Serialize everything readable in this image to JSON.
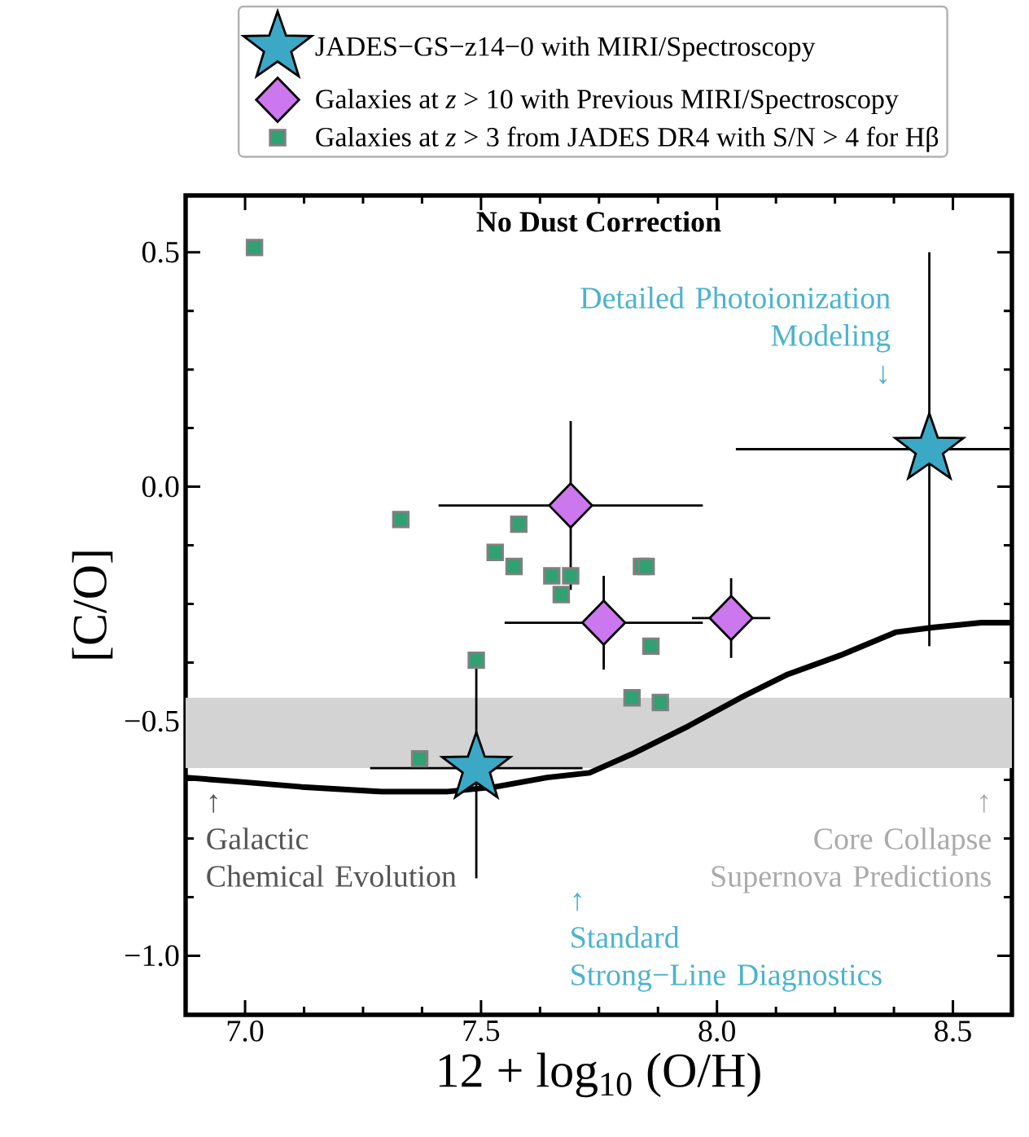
{
  "chart_data": {
    "type": "scatter",
    "title": "No Dust Correction",
    "xlabel": "12 + log$_{10}$ (O/H)",
    "ylabel": "[C/O]",
    "xlim": [
      6.874,
      8.625
    ],
    "ylim": [
      -1.126,
      0.621
    ],
    "xticks": [
      {
        "value": 7.0,
        "label": "7.0"
      },
      {
        "value": 7.5,
        "label": "7.5"
      },
      {
        "value": 8.0,
        "label": "8.0"
      },
      {
        "value": 8.5,
        "label": "8.5"
      }
    ],
    "yticks": [
      {
        "value": 0.5,
        "label": "0.5"
      },
      {
        "value": 0.0,
        "label": "0.0"
      },
      {
        "value": -0.5,
        "label": "−0.5"
      },
      {
        "value": -1.0,
        "label": "−1.0"
      }
    ],
    "legend": "top",
    "series": [
      {
        "name": "JADES−GS−z14−0 with MIRI/Spectroscopy",
        "marker": "star",
        "color": "#3ba9c6",
        "x": [
          7.49,
          8.45
        ],
        "values": [
          -0.6,
          0.08
        ],
        "errors": [
          0.235,
          0.42
        ],
        "xerrors": [
          0.225,
          [
            8.04,
            8.62
          ]
        ]
      },
      {
        "name": "Galaxies at *z* > 10 with Previous MIRI/Spectroscopy",
        "marker": "diamond",
        "color": "#cc77ee",
        "x": [
          7.69,
          7.76,
          8.03
        ],
        "values": [
          -0.04,
          -0.29,
          -0.28
        ],
        "errors": [
          0.18,
          0.1,
          0.085
        ],
        "xerrors": [
          0.28,
          0.21,
          0.083
        ]
      },
      {
        "name": "Galaxies at *z* > 3 from JADES DR4 with S/N > 4 for Hβ",
        "marker": "square",
        "color": "#2fa173",
        "x": [
          7.02,
          7.33,
          7.58,
          7.53,
          7.57,
          7.65,
          7.69,
          7.84,
          7.85,
          7.67,
          7.86,
          7.49,
          7.82,
          7.88,
          7.37
        ],
        "values": [
          0.51,
          -0.07,
          -0.08,
          -0.14,
          -0.17,
          -0.19,
          -0.19,
          -0.17,
          -0.17,
          -0.23,
          -0.34,
          -0.37,
          -0.45,
          -0.46,
          -0.58
        ]
      },
      {
        "type": "line",
        "line_style": "solid",
        "color": "#000000",
        "x": [
          6.874,
          7.0,
          7.12,
          7.29,
          7.43,
          7.53,
          7.64,
          7.73,
          7.82,
          7.94,
          8.05,
          8.15,
          8.26,
          8.38,
          8.46,
          8.56,
          8.623
        ],
        "values": [
          -0.62,
          -0.63,
          -0.64,
          -0.65,
          -0.65,
          -0.64,
          -0.62,
          -0.61,
          -0.57,
          -0.51,
          -0.45,
          -0.4,
          -0.36,
          -0.31,
          -0.3,
          -0.29,
          -0.29
        ]
      }
    ],
    "bands": [
      {
        "axis": "y",
        "from": -0.6,
        "to": -0.45,
        "color": "#d3d3d3"
      }
    ],
    "annotations": [
      "Detailed Photoionization Modeling ↓",
      "↑ Standard Strong−Line Diagnostics",
      "↑ Galactic Chemical Evolution",
      "↑ Core Collapse Supernova Predictions"
    ]
  }
}
